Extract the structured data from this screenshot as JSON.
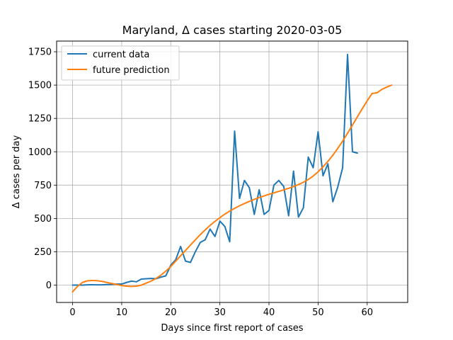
{
  "chart_data": {
    "type": "line",
    "title": "Maryland, Δ cases starting 2020-03-05",
    "xlabel": "Days since first report of cases",
    "ylabel": "Δ cases per day",
    "xlim": [
      -3.25,
      68.25
    ],
    "ylim": [
      -130,
      1830
    ],
    "xticks": [
      0,
      10,
      20,
      30,
      40,
      50,
      60
    ],
    "yticks": [
      0,
      250,
      500,
      750,
      1000,
      1250,
      1500,
      1750
    ],
    "grid": true,
    "legend_position": "top-left",
    "series": [
      {
        "name": "current data",
        "color": "#1f77b4",
        "x": [
          0,
          1,
          2,
          3,
          4,
          5,
          6,
          7,
          8,
          9,
          10,
          11,
          12,
          13,
          14,
          15,
          16,
          17,
          18,
          19,
          20,
          21,
          22,
          23,
          24,
          25,
          26,
          27,
          28,
          29,
          30,
          31,
          32,
          33,
          34,
          35,
          36,
          37,
          38,
          39,
          40,
          41,
          42,
          43,
          44,
          45,
          46,
          47,
          48,
          49,
          50,
          51,
          52,
          53,
          54,
          55,
          56,
          57,
          58
        ],
        "y": [
          0,
          0,
          0,
          2,
          3,
          2,
          2,
          4,
          5,
          8,
          8,
          20,
          30,
          25,
          45,
          48,
          50,
          48,
          60,
          70,
          150,
          190,
          290,
          180,
          170,
          250,
          320,
          340,
          420,
          365,
          480,
          440,
          325,
          1155,
          650,
          785,
          730,
          530,
          715,
          530,
          560,
          750,
          785,
          740,
          520,
          855,
          510,
          580,
          960,
          880,
          1150,
          820,
          910,
          625,
          735,
          880,
          1730,
          1000,
          990
        ]
      },
      {
        "name": "future prediction",
        "color": "#ff7f0e",
        "x": [
          0,
          1,
          2,
          3,
          4,
          5,
          6,
          7,
          8,
          9,
          10,
          11,
          12,
          13,
          14,
          15,
          16,
          17,
          18,
          19,
          20,
          21,
          22,
          23,
          24,
          25,
          26,
          27,
          28,
          29,
          30,
          31,
          32,
          33,
          34,
          35,
          36,
          37,
          38,
          39,
          40,
          41,
          42,
          43,
          44,
          45,
          46,
          47,
          48,
          49,
          50,
          51,
          52,
          53,
          54,
          55,
          56,
          57,
          58,
          59,
          60,
          61,
          62,
          63,
          64,
          65
        ],
        "y": [
          -50,
          -10,
          20,
          32,
          35,
          33,
          28,
          20,
          12,
          5,
          -3,
          -8,
          -10,
          -8,
          0,
          15,
          30,
          50,
          75,
          105,
          140,
          180,
          220,
          260,
          300,
          340,
          378,
          414,
          448,
          478,
          506,
          532,
          555,
          576,
          595,
          612,
          628,
          643,
          657,
          669,
          681,
          692,
          703,
          714,
          726,
          739,
          754,
          771,
          792,
          818,
          850,
          887,
          928,
          974,
          1025,
          1080,
          1139,
          1200,
          1262,
          1323,
          1382,
          1437,
          1442,
          1468,
          1485,
          1500
        ]
      }
    ]
  }
}
